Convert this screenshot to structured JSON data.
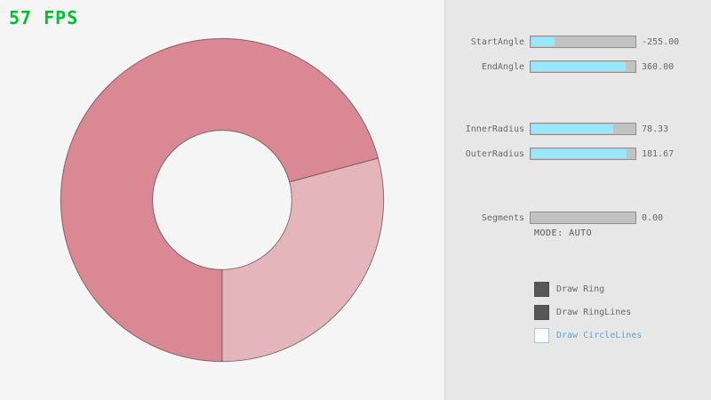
{
  "fps_label": "57 FPS",
  "colors": {
    "fps_green": "#00C12E",
    "canvas_bg": "#F5F5F5",
    "panel_bg": "#E7E7E7",
    "ring_single_pass": "#E4B5BB",
    "ring_double_pass": "#D98894",
    "slider_fill": "#97E8FF",
    "focused_blue": "#5BA7CF"
  },
  "ring": {
    "start_angle": -255.0,
    "end_angle": 360.0,
    "inner_radius": 78.33,
    "outer_radius": 181.67,
    "segments": 0.0,
    "mode": "AUTO"
  },
  "panel": {
    "sliders": [
      {
        "label": "StartAngle",
        "value": "-255.00",
        "fill_pct": 21.7
      },
      {
        "label": "EndAngle",
        "value": "360.00",
        "fill_pct": 90.0
      },
      {
        "label": "InnerRadius",
        "value": "78.33",
        "fill_pct": 78.3
      },
      {
        "label": "OuterRadius",
        "value": "181.67",
        "fill_pct": 90.8
      },
      {
        "label": "Segments",
        "value": "0.00",
        "fill_pct": 0.0
      }
    ],
    "mode_text": "MODE: AUTO",
    "checkboxes": [
      {
        "label": "Draw Ring",
        "checked": true,
        "focused": false
      },
      {
        "label": "Draw RingLines",
        "checked": true,
        "focused": false
      },
      {
        "label": "Draw CircleLines",
        "checked": false,
        "focused": true
      }
    ]
  }
}
